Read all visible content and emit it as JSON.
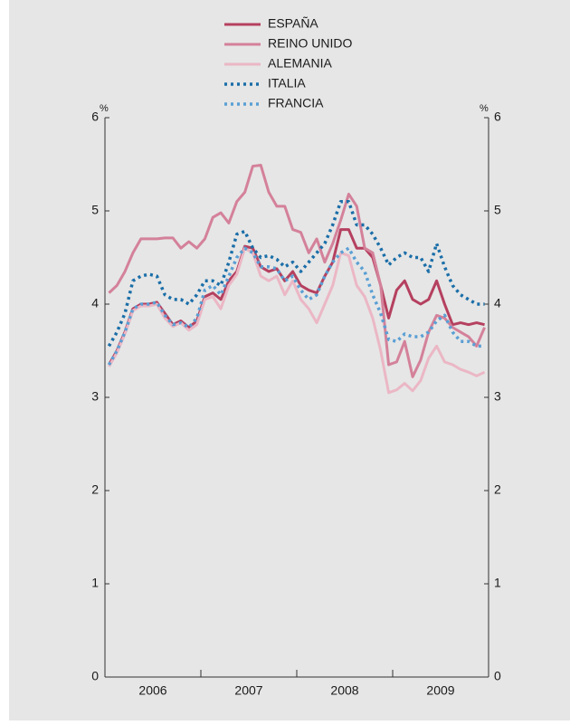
{
  "chart_data": {
    "type": "line",
    "unit": "%",
    "categories": [
      "2006",
      null,
      null,
      null,
      null,
      null,
      null,
      null,
      null,
      null,
      null,
      null,
      "2007",
      null,
      null,
      null,
      null,
      null,
      null,
      null,
      null,
      null,
      null,
      null,
      "2008",
      null,
      null,
      null,
      null,
      null,
      null,
      null,
      null,
      null,
      null,
      null,
      "2009",
      null,
      null,
      null,
      null,
      null,
      null,
      null,
      null,
      null,
      null,
      null
    ],
    "ylim": [
      0,
      6
    ],
    "yticks": [
      0,
      1,
      2,
      3,
      4,
      5,
      6
    ],
    "series": [
      {
        "name": "ESPAÑA",
        "color": "#b5405f",
        "dashed": false,
        "values": [
          3.35,
          3.5,
          3.7,
          3.95,
          4.0,
          4.0,
          4.02,
          3.9,
          3.78,
          3.82,
          3.75,
          3.82,
          4.08,
          4.12,
          4.05,
          4.25,
          4.35,
          4.62,
          4.6,
          4.4,
          4.35,
          4.38,
          4.25,
          4.35,
          4.2,
          4.15,
          4.12,
          4.3,
          4.45,
          4.8,
          4.8,
          4.6,
          4.6,
          4.5,
          4.2,
          3.85,
          4.15,
          4.25,
          4.05,
          4.0,
          4.05,
          4.25,
          4.0,
          3.78,
          3.8,
          3.78,
          3.8,
          3.78
        ]
      },
      {
        "name": "REINO UNIDO",
        "color": "#d4819a",
        "dashed": false,
        "values": [
          4.12,
          4.2,
          4.35,
          4.55,
          4.7,
          4.7,
          4.7,
          4.71,
          4.71,
          4.6,
          4.67,
          4.6,
          4.7,
          4.93,
          4.98,
          4.87,
          5.1,
          5.2,
          5.48,
          5.49,
          5.2,
          5.05,
          5.05,
          4.8,
          4.77,
          4.55,
          4.7,
          4.45,
          4.65,
          4.9,
          5.18,
          5.05,
          4.6,
          4.55,
          4.2,
          3.35,
          3.38,
          3.6,
          3.22,
          3.4,
          3.7,
          3.88,
          3.85,
          3.75,
          3.7,
          3.65,
          3.55,
          3.75
        ]
      },
      {
        "name": "ALEMANIA",
        "color": "#ebb7c5",
        "dashed": false,
        "values": [
          3.33,
          3.48,
          3.68,
          3.93,
          3.98,
          3.98,
          4.0,
          3.85,
          3.76,
          3.8,
          3.72,
          3.78,
          4.05,
          4.08,
          3.95,
          4.2,
          4.32,
          4.6,
          4.55,
          4.3,
          4.25,
          4.3,
          4.1,
          4.25,
          4.05,
          3.95,
          3.8,
          4.0,
          4.2,
          4.55,
          4.52,
          4.2,
          4.08,
          3.85,
          3.5,
          3.05,
          3.08,
          3.15,
          3.07,
          3.18,
          3.42,
          3.55,
          3.38,
          3.35,
          3.3,
          3.27,
          3.23,
          3.27
        ]
      },
      {
        "name": "ITALIA",
        "color": "#1a6ea8",
        "dashed": true,
        "values": [
          3.55,
          3.7,
          3.9,
          4.25,
          4.3,
          4.32,
          4.3,
          4.1,
          4.05,
          4.05,
          4.0,
          4.1,
          4.25,
          4.25,
          4.2,
          4.45,
          4.75,
          4.78,
          4.6,
          4.5,
          4.52,
          4.48,
          4.4,
          4.45,
          4.35,
          4.45,
          4.55,
          4.65,
          4.85,
          5.1,
          5.1,
          4.85,
          4.85,
          4.75,
          4.6,
          4.42,
          4.5,
          4.55,
          4.5,
          4.5,
          4.35,
          4.65,
          4.4,
          4.2,
          4.1,
          4.05,
          4.0,
          4.0
        ]
      },
      {
        "name": "FRANCIA",
        "color": "#5a9fd4",
        "dashed": true,
        "values": [
          3.35,
          3.5,
          3.7,
          3.95,
          4.0,
          4.0,
          4.02,
          3.88,
          3.78,
          3.8,
          3.75,
          3.85,
          4.15,
          4.2,
          4.1,
          4.3,
          4.5,
          4.6,
          4.55,
          4.4,
          4.4,
          4.38,
          4.25,
          4.3,
          4.15,
          4.05,
          4.1,
          4.3,
          4.45,
          4.55,
          4.6,
          4.45,
          4.35,
          4.1,
          3.9,
          3.62,
          3.6,
          3.68,
          3.65,
          3.65,
          3.7,
          3.82,
          3.88,
          3.7,
          3.6,
          3.6,
          3.55,
          3.55
        ]
      }
    ]
  }
}
